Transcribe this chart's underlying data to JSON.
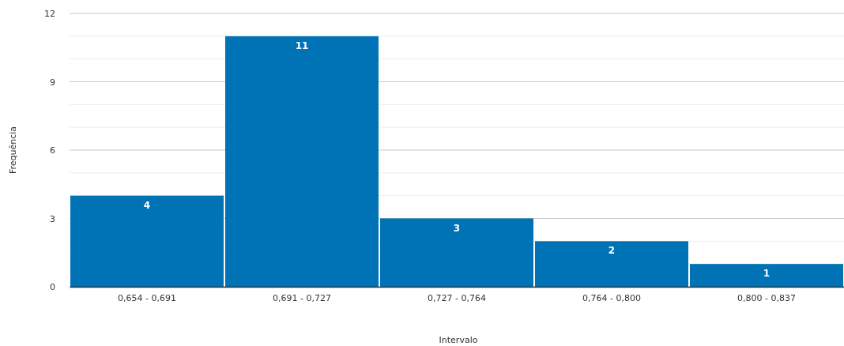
{
  "chart_data": {
    "type": "bar",
    "xlabel": "Intervalo",
    "ylabel": "Frequência",
    "categories": [
      "0,654 - 0,691",
      "0,691 - 0,727",
      "0,727 - 0,764",
      "0,764 - 0,800",
      "0,800 - 0,837"
    ],
    "values": [
      4,
      11,
      3,
      2,
      1
    ],
    "color": "#0073b6",
    "data_labels": true,
    "ylim": [
      0,
      12
    ],
    "yticks": [
      0,
      {
        "value": 1,
        "label": null
      },
      {
        "value": 2,
        "label": null
      },
      3,
      {
        "value": 4,
        "label": null
      },
      {
        "value": 5,
        "label": null
      },
      6,
      {
        "value": 7,
        "label": null
      },
      {
        "value": 8,
        "label": null
      },
      9,
      {
        "value": 10,
        "label": null
      },
      {
        "value": 11,
        "label": null
      },
      12
    ],
    "grid": true
  }
}
